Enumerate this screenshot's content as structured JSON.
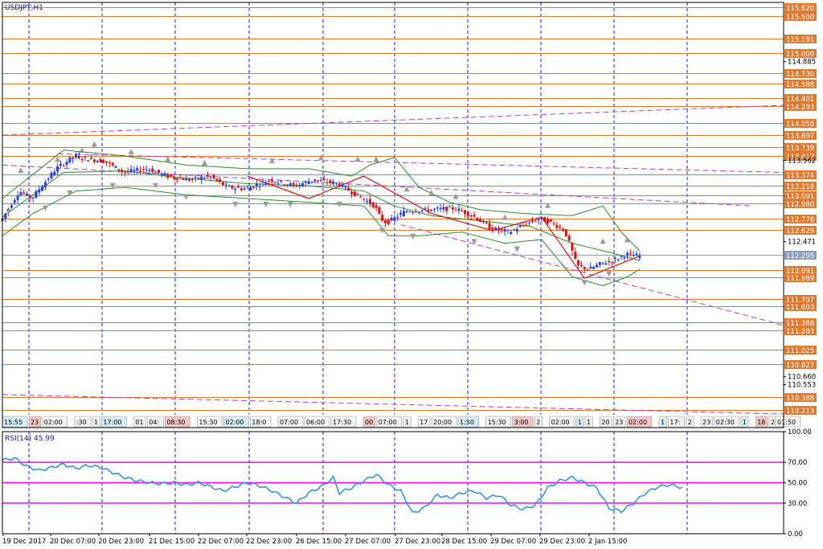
{
  "colors": {
    "background": "#ffffff",
    "frame": "#000000",
    "vgrid": "#1a1aff",
    "level_line": "#e07a2e",
    "level_label_bg": "#e07a2e",
    "current_price_line": "#8c9db8",
    "current_price_bg": "#8c9db8",
    "bull_candle": "#1f3fe0",
    "bear_candle": "#e01010",
    "bollinger": "#2c8c2c",
    "trend_line": "#b040d0",
    "zigzag": "#e01010",
    "fractal": "#9a9a9a",
    "rsi_line": "#2b8ee0",
    "rsi_level": "#ff00ff",
    "axis_label": "#000000",
    "title": "#1a1a8c"
  },
  "chart_data": {
    "type": "candlestick",
    "title": "USDJPY,H1",
    "price_axis": {
      "ylim": [
        110.15,
        115.68
      ],
      "tick_labels": [
        "114.885",
        "113.562",
        "112.471",
        "110.660",
        "110.553"
      ]
    },
    "levels": [
      115.62,
      115.5,
      115.191,
      115.0,
      114.73,
      114.588,
      114.401,
      114.293,
      114.058,
      113.897,
      113.739,
      113.617,
      113.374,
      113.218,
      113.091,
      112.98,
      112.776,
      112.629,
      112.091,
      111.989,
      111.707,
      111.603,
      111.388,
      111.283,
      111.025,
      110.827,
      110.388,
      110.213
    ],
    "level_labels": [
      "115.620",
      "115.500",
      "115.191",
      "115.000",
      "114.730",
      "114.588",
      "114.401",
      "114.293",
      "114.058",
      "113.897",
      "113.739",
      "113.617",
      "113.374",
      "113.218",
      "113.091",
      "112.980",
      "112.776",
      "112.629",
      "112.091",
      "111.989",
      "111.707",
      "111.603",
      "111.388",
      "111.283",
      "111.025",
      "110.827",
      "110.388",
      "110.213"
    ],
    "current_price": 112.295,
    "current_price_label": "112.295",
    "x_labels": [
      "19 Dec 2017",
      "20 Dec 07:00",
      "20 Dec 23:00",
      "21 Dec 15:00",
      "22 Dec 07:00",
      "22 Dec 23:00",
      "26 Dec 15:00",
      "27 Dec 07:00",
      "27 Dec 23:00",
      "28 Dec 15:00",
      "29 Dec 07:00",
      "29 Dec 23:00",
      "2 Jan 15:00"
    ],
    "price_path": [
      [
        0,
        112.75
      ],
      [
        6,
        113.15
      ],
      [
        10,
        113.05
      ],
      [
        18,
        113.45
      ],
      [
        24,
        113.62
      ],
      [
        28,
        113.58
      ],
      [
        34,
        113.55
      ],
      [
        40,
        113.4
      ],
      [
        48,
        113.45
      ],
      [
        54,
        113.35
      ],
      [
        62,
        113.3
      ],
      [
        68,
        113.35
      ],
      [
        74,
        113.2
      ],
      [
        80,
        113.18
      ],
      [
        88,
        113.3
      ],
      [
        96,
        113.22
      ],
      [
        102,
        113.3
      ],
      [
        110,
        113.25
      ],
      [
        118,
        113.05
      ],
      [
        122,
        112.95
      ],
      [
        124,
        112.78
      ],
      [
        126,
        112.72
      ],
      [
        132,
        112.88
      ],
      [
        140,
        112.9
      ],
      [
        148,
        112.92
      ],
      [
        154,
        112.82
      ],
      [
        160,
        112.65
      ],
      [
        166,
        112.6
      ],
      [
        172,
        112.72
      ],
      [
        176,
        112.78
      ],
      [
        180,
        112.72
      ],
      [
        184,
        112.62
      ],
      [
        186,
        112.4
      ],
      [
        188,
        112.15
      ],
      [
        192,
        112.1
      ],
      [
        196,
        112.18
      ],
      [
        200,
        112.22
      ],
      [
        204,
        112.3
      ],
      [
        208,
        112.28
      ]
    ],
    "bollinger": {
      "upper": [
        [
          0,
          113.05
        ],
        [
          20,
          113.7
        ],
        [
          40,
          113.62
        ],
        [
          60,
          113.5
        ],
        [
          80,
          113.45
        ],
        [
          100,
          113.45
        ],
        [
          114,
          113.35
        ],
        [
          120,
          113.5
        ],
        [
          128,
          113.6
        ],
        [
          136,
          113.2
        ],
        [
          146,
          113.0
        ],
        [
          156,
          112.9
        ],
        [
          170,
          112.85
        ],
        [
          186,
          112.82
        ],
        [
          196,
          112.95
        ],
        [
          202,
          112.6
        ],
        [
          208,
          112.35
        ]
      ],
      "lower": [
        [
          0,
          112.55
        ],
        [
          10,
          112.85
        ],
        [
          24,
          113.15
        ],
        [
          40,
          113.2
        ],
        [
          60,
          113.1
        ],
        [
          80,
          113.05
        ],
        [
          100,
          113.0
        ],
        [
          118,
          112.95
        ],
        [
          126,
          112.55
        ],
        [
          136,
          112.55
        ],
        [
          150,
          112.6
        ],
        [
          164,
          112.45
        ],
        [
          176,
          112.5
        ],
        [
          186,
          112.0
        ],
        [
          196,
          111.88
        ],
        [
          204,
          112.0
        ],
        [
          208,
          112.1
        ]
      ],
      "middle": [
        [
          0,
          112.8
        ],
        [
          20,
          113.4
        ],
        [
          40,
          113.42
        ],
        [
          60,
          113.32
        ],
        [
          80,
          113.25
        ],
        [
          100,
          113.22
        ],
        [
          118,
          113.15
        ],
        [
          128,
          112.95
        ],
        [
          140,
          112.82
        ],
        [
          156,
          112.75
        ],
        [
          172,
          112.68
        ],
        [
          186,
          112.45
        ],
        [
          196,
          112.35
        ],
        [
          208,
          112.22
        ]
      ]
    },
    "trend_lines": [
      {
        "points": [
          [
            0,
            113.9
          ],
          [
            255,
            114.3
          ]
        ]
      },
      {
        "points": [
          [
            18,
            113.65
          ],
          [
            255,
            113.4
          ]
        ]
      },
      {
        "points": [
          [
            0,
            113.5
          ],
          [
            245,
            112.95
          ]
        ]
      },
      {
        "points": [
          [
            130,
            112.7
          ],
          [
            255,
            111.35
          ]
        ]
      },
      {
        "points": [
          [
            0,
            110.42
          ],
          [
            255,
            110.16
          ]
        ]
      }
    ],
    "zigzag": [
      [
        80,
        113.35
      ],
      [
        100,
        113.05
      ],
      [
        118,
        113.35
      ],
      [
        140,
        112.85
      ],
      [
        160,
        112.62
      ],
      [
        176,
        112.8
      ],
      [
        190,
        111.98
      ],
      [
        208,
        112.28
      ]
    ],
    "fractals_up": [
      [
        6,
        113.35
      ],
      [
        18,
        113.5
      ],
      [
        26,
        113.62
      ],
      [
        30,
        113.7
      ],
      [
        42,
        113.6
      ],
      [
        54,
        113.5
      ],
      [
        66,
        113.45
      ],
      [
        88,
        113.48
      ],
      [
        104,
        113.52
      ],
      [
        116,
        113.5
      ],
      [
        122,
        113.5
      ],
      [
        132,
        113.1
      ],
      [
        140,
        113.05
      ],
      [
        148,
        113.0
      ],
      [
        164,
        112.72
      ],
      [
        178,
        112.88
      ],
      [
        196,
        112.4
      ],
      [
        204,
        112.42
      ]
    ],
    "fractals_down": [
      [
        2,
        112.95
      ],
      [
        14,
        113.0
      ],
      [
        22,
        113.2
      ],
      [
        36,
        113.3
      ],
      [
        50,
        113.3
      ],
      [
        60,
        113.15
      ],
      [
        76,
        113.05
      ],
      [
        86,
        113.05
      ],
      [
        94,
        113.05
      ],
      [
        110,
        113.05
      ],
      [
        124,
        112.7
      ],
      [
        134,
        112.62
      ],
      [
        154,
        112.55
      ],
      [
        168,
        112.45
      ],
      [
        190,
        112.0
      ],
      [
        198,
        112.12
      ]
    ],
    "time_tags": [
      "15:55",
      "23",
      "02:00",
      ":30",
      "1",
      "17:00",
      "01",
      "04:",
      "08:30",
      "15:30",
      "02:00",
      "18:0",
      "07:00",
      "06:00",
      "17:30",
      "00",
      "07:00",
      "1",
      "17",
      "20:00",
      "1:50",
      "15:30",
      "3:00",
      "2",
      "02:00",
      "1",
      "1",
      "20",
      "23",
      "02:00",
      "1",
      "17:",
      "2",
      "23",
      "02:30",
      "1",
      "18",
      "20:3",
      "01:50"
    ],
    "rsi": {
      "title": "RSI(14) 45.99",
      "levels": [
        70,
        50,
        30
      ],
      "ylim": [
        0,
        100
      ],
      "tick_labels": [
        "100.00",
        "70.00",
        "50.00",
        "30.00",
        "0.00"
      ],
      "path": [
        [
          0,
          72
        ],
        [
          4,
          74
        ],
        [
          8,
          66
        ],
        [
          12,
          62
        ],
        [
          16,
          65
        ],
        [
          20,
          68
        ],
        [
          24,
          64
        ],
        [
          28,
          67
        ],
        [
          32,
          65
        ],
        [
          36,
          60
        ],
        [
          40,
          55
        ],
        [
          44,
          52
        ],
        [
          48,
          50
        ],
        [
          52,
          49
        ],
        [
          56,
          50
        ],
        [
          60,
          48
        ],
        [
          64,
          50
        ],
        [
          68,
          46
        ],
        [
          72,
          42
        ],
        [
          76,
          46
        ],
        [
          80,
          50
        ],
        [
          84,
          47
        ],
        [
          88,
          42
        ],
        [
          92,
          36
        ],
        [
          96,
          30
        ],
        [
          100,
          40
        ],
        [
          104,
          46
        ],
        [
          108,
          55
        ],
        [
          110,
          40
        ],
        [
          114,
          45
        ],
        [
          118,
          52
        ],
        [
          122,
          58
        ],
        [
          126,
          48
        ],
        [
          130,
          42
        ],
        [
          134,
          20
        ],
        [
          138,
          26
        ],
        [
          142,
          38
        ],
        [
          146,
          35
        ],
        [
          150,
          40
        ],
        [
          154,
          42
        ],
        [
          158,
          35
        ],
        [
          162,
          38
        ],
        [
          166,
          28
        ],
        [
          170,
          24
        ],
        [
          174,
          28
        ],
        [
          178,
          45
        ],
        [
          182,
          52
        ],
        [
          186,
          55
        ],
        [
          190,
          50
        ],
        [
          194,
          45
        ],
        [
          198,
          25
        ],
        [
          202,
          22
        ],
        [
          206,
          30
        ],
        [
          210,
          40
        ],
        [
          214,
          46
        ],
        [
          218,
          48
        ],
        [
          222,
          45
        ]
      ]
    }
  }
}
